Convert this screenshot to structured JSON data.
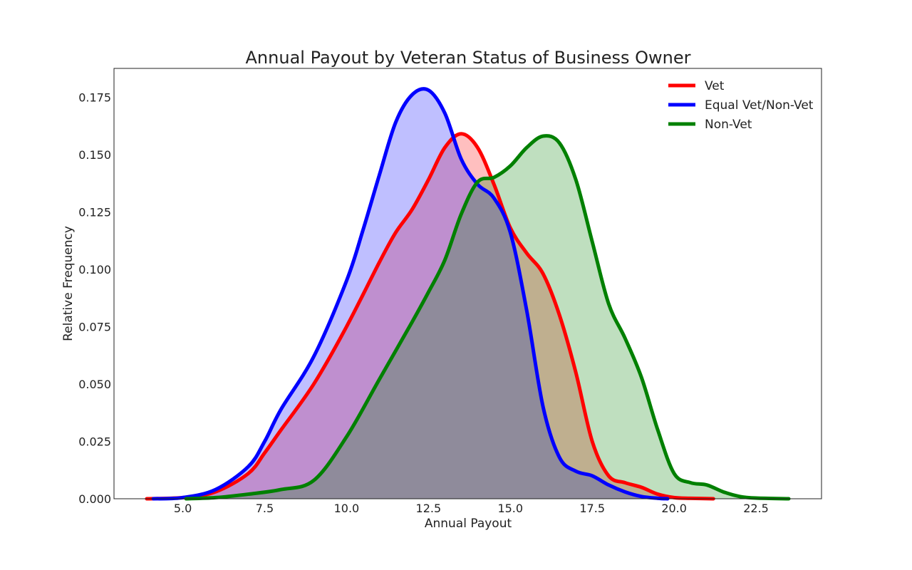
{
  "chart_data": {
    "type": "area",
    "title": "Annual Payout by Veteran Status of Business Owner",
    "xlabel": "Annual Payout",
    "ylabel": "Relative Frequency",
    "xlim": [
      2.9,
      24.5
    ],
    "ylim": [
      0,
      0.1875
    ],
    "xticks": [
      "5.0",
      "7.5",
      "10.0",
      "12.5",
      "15.0",
      "17.5",
      "20.0",
      "22.5"
    ],
    "xtick_values": [
      5.0,
      7.5,
      10.0,
      12.5,
      15.0,
      17.5,
      20.0,
      22.5
    ],
    "yticks": [
      "0.000",
      "0.025",
      "0.050",
      "0.075",
      "0.100",
      "0.125",
      "0.150",
      "0.175"
    ],
    "ytick_values": [
      0.0,
      0.025,
      0.05,
      0.075,
      0.1,
      0.125,
      0.15,
      0.175
    ],
    "grid": false,
    "legend_position": "top-right",
    "series": [
      {
        "name": "Vet",
        "color": "#ff0000",
        "fill_color": "#ff0000",
        "x": [
          3.9,
          5.0,
          6.0,
          7.0,
          7.5,
          8.0,
          9.0,
          10.0,
          11.0,
          11.5,
          12.0,
          12.5,
          13.0,
          13.5,
          14.0,
          14.5,
          15.0,
          15.5,
          16.0,
          16.5,
          17.0,
          17.5,
          18.0,
          18.5,
          19.0,
          19.5,
          20.0,
          20.5,
          21.2
        ],
        "y": [
          0.0,
          0.0005,
          0.003,
          0.011,
          0.02,
          0.03,
          0.05,
          0.075,
          0.103,
          0.116,
          0.126,
          0.139,
          0.153,
          0.159,
          0.153,
          0.137,
          0.118,
          0.107,
          0.098,
          0.08,
          0.055,
          0.025,
          0.01,
          0.007,
          0.005,
          0.002,
          0.0005,
          0.0002,
          0.0
        ]
      },
      {
        "name": "Equal Vet/Non-Vet",
        "color": "#0000ff",
        "fill_color": "#0000ff",
        "x": [
          4.1,
          5.0,
          6.0,
          7.0,
          7.5,
          8.0,
          9.0,
          10.0,
          10.5,
          11.0,
          11.5,
          12.0,
          12.5,
          13.0,
          13.5,
          14.0,
          14.5,
          15.0,
          15.5,
          16.0,
          16.5,
          17.0,
          17.5,
          18.0,
          18.5,
          19.0,
          19.5,
          19.8
        ],
        "y": [
          0.0,
          0.0005,
          0.004,
          0.014,
          0.025,
          0.039,
          0.062,
          0.095,
          0.117,
          0.141,
          0.164,
          0.176,
          0.178,
          0.168,
          0.148,
          0.137,
          0.131,
          0.116,
          0.082,
          0.04,
          0.018,
          0.012,
          0.01,
          0.006,
          0.003,
          0.001,
          0.0002,
          0.0
        ]
      },
      {
        "name": "Non-Vet",
        "color": "#008000",
        "fill_color": "#008000",
        "x": [
          5.1,
          6.0,
          7.0,
          8.0,
          9.0,
          10.0,
          11.0,
          12.0,
          12.5,
          13.0,
          13.5,
          14.0,
          14.5,
          15.0,
          15.5,
          16.0,
          16.5,
          17.0,
          17.5,
          18.0,
          18.5,
          19.0,
          19.5,
          20.0,
          20.5,
          21.0,
          21.5,
          22.0,
          22.5,
          23.5
        ],
        "y": [
          0.0,
          0.0005,
          0.002,
          0.004,
          0.008,
          0.027,
          0.052,
          0.077,
          0.09,
          0.104,
          0.124,
          0.138,
          0.14,
          0.145,
          0.153,
          0.158,
          0.155,
          0.139,
          0.112,
          0.085,
          0.07,
          0.053,
          0.03,
          0.011,
          0.007,
          0.006,
          0.003,
          0.001,
          0.0003,
          0.0
        ]
      }
    ]
  }
}
